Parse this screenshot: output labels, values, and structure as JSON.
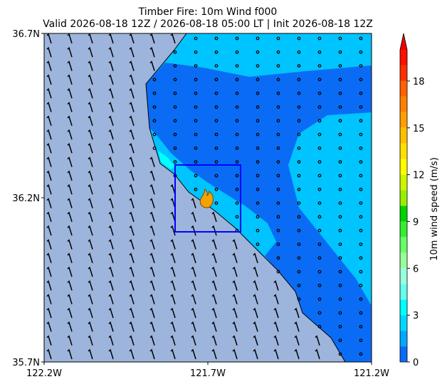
{
  "chart_data": {
    "type": "map",
    "title": "Timber Fire: 10m Wind f000",
    "subtitle": "Valid 2026-08-18 12Z / 2026-08-18 05:00 LT | Init 2026-08-18 12Z",
    "xlim": [
      -122.2,
      -121.2
    ],
    "xticks": [
      {
        "value": -122.2,
        "label": "122.2W"
      },
      {
        "value": -121.7,
        "label": "121.7W"
      },
      {
        "value": -121.2,
        "label": "121.2W"
      }
    ],
    "ylim": [
      35.7,
      36.7
    ],
    "yticks": [
      {
        "value": 35.7,
        "label": "35.7N"
      },
      {
        "value": 36.2,
        "label": "36.2N"
      },
      {
        "value": 36.7,
        "label": "36.7N"
      }
    ],
    "colorbar": {
      "label": "10m wind speed (m/s)",
      "lim": [
        0,
        20
      ],
      "ticks": [
        0,
        3,
        6,
        9,
        12,
        15,
        18
      ],
      "bounds": [
        0,
        1,
        2,
        3,
        4,
        5,
        6,
        7,
        8,
        9,
        10,
        11,
        12,
        13,
        14,
        15,
        16,
        17,
        18,
        19,
        20
      ],
      "colors": [
        "#0a6cf5",
        "#00a8ff",
        "#00d8ff",
        "#00ffff",
        "#66ffee",
        "#99ffdd",
        "#99ff99",
        "#66ff66",
        "#33ee33",
        "#00d400",
        "#99ee00",
        "#ccf500",
        "#ffff00",
        "#ffe000",
        "#ffc000",
        "#ffa000",
        "#ff8000",
        "#ff6000",
        "#ff3000",
        "#ff1000"
      ],
      "extend_color": "#ee0000"
    }
  }
}
